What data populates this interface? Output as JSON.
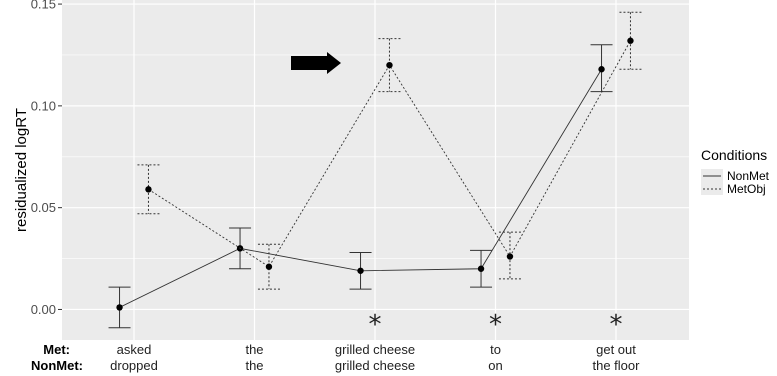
{
  "chart_data": {
    "type": "line",
    "title": "",
    "xlabel": "",
    "ylabel": "residualized logRT",
    "ylim": [
      -0.015,
      0.152
    ],
    "yticks": [
      0.0,
      0.05,
      0.1,
      0.15
    ],
    "ytick_labels": [
      "0.00",
      "0.05",
      "0.10",
      "0.15"
    ],
    "grid": true,
    "legend": {
      "title": "Conditions",
      "position": "right",
      "entries": [
        {
          "name": "NonMet",
          "style": "solid"
        },
        {
          "name": "MetObj",
          "style": "dotted"
        }
      ]
    },
    "row_labels": {
      "met": "Met:",
      "nonmet": "NonMet:"
    },
    "categories": [
      {
        "met": "asked",
        "nonmet": "dropped"
      },
      {
        "met": "the",
        "nonmet": "the"
      },
      {
        "met": "grilled cheese",
        "nonmet": "grilled cheese"
      },
      {
        "met": "to",
        "nonmet": "on"
      },
      {
        "met": "get out",
        "nonmet": "the floor"
      }
    ],
    "series": [
      {
        "name": "NonMet",
        "style": "solid",
        "x_offset": -0.12,
        "values": [
          0.001,
          0.03,
          0.019,
          0.02,
          0.118
        ],
        "lower": [
          -0.009,
          0.02,
          0.01,
          0.011,
          0.107
        ],
        "upper": [
          0.011,
          0.04,
          0.028,
          0.029,
          0.13
        ]
      },
      {
        "name": "MetObj",
        "style": "dotted",
        "x_offset": 0.12,
        "values": [
          0.059,
          0.021,
          0.12,
          0.026,
          0.132
        ],
        "lower": [
          0.047,
          0.01,
          0.107,
          0.015,
          0.118
        ],
        "upper": [
          0.071,
          0.032,
          0.133,
          0.038,
          0.146
        ]
      }
    ],
    "significance_markers": [
      {
        "category_index": 2,
        "symbol": "*"
      },
      {
        "category_index": 3,
        "symbol": "*"
      },
      {
        "category_index": 4,
        "symbol": "*"
      }
    ],
    "annotation_arrow": {
      "points_to_category_index": 2,
      "color": "#000000"
    },
    "colors": {
      "panel_bg": "#ebebeb",
      "grid": "#ffffff",
      "line": "#333333",
      "point": "#000000",
      "tick_text": "#4d4d4d"
    }
  }
}
